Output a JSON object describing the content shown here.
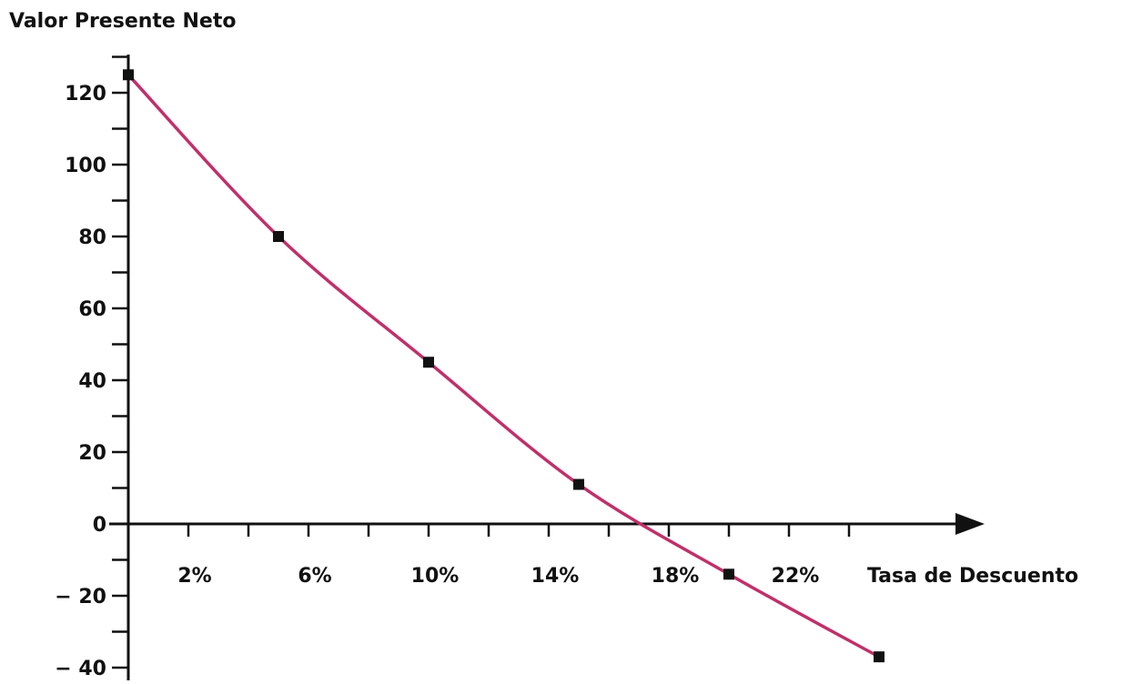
{
  "chart_data": {
    "type": "line",
    "title": "",
    "ylabel": "Valor Presente Neto",
    "xlabel": "Tasa de Descuento",
    "x_ticks": [
      {
        "value": 0.02,
        "label": "2%"
      },
      {
        "value": 0.06,
        "label": "6%"
      },
      {
        "value": 0.1,
        "label": "10%"
      },
      {
        "value": 0.14,
        "label": "14%"
      },
      {
        "value": 0.18,
        "label": "18%"
      },
      {
        "value": 0.22,
        "label": "22%"
      }
    ],
    "y_ticks": [
      {
        "value": 120,
        "label": "120"
      },
      {
        "value": 100,
        "label": "100"
      },
      {
        "value": 80,
        "label": "80"
      },
      {
        "value": 60,
        "label": "60"
      },
      {
        "value": 40,
        "label": "40"
      },
      {
        "value": 20,
        "label": "20"
      },
      {
        "value": 0,
        "label": "0"
      },
      {
        "value": -20,
        "label": "− 20"
      },
      {
        "value": -40,
        "label": "− 40"
      }
    ],
    "xlim": [
      0,
      0.28
    ],
    "ylim": [
      -40,
      130
    ],
    "series": [
      {
        "color": "#c0306a",
        "marker_color": "#111111",
        "points": [
          {
            "x": 0.0,
            "y": 125
          },
          {
            "x": 0.05,
            "y": 80
          },
          {
            "x": 0.1,
            "y": 45
          },
          {
            "x": 0.15,
            "y": 11
          },
          {
            "x": 0.2,
            "y": -14
          },
          {
            "x": 0.25,
            "y": -37
          }
        ]
      }
    ],
    "grid": false,
    "axis_color": "#111111"
  }
}
